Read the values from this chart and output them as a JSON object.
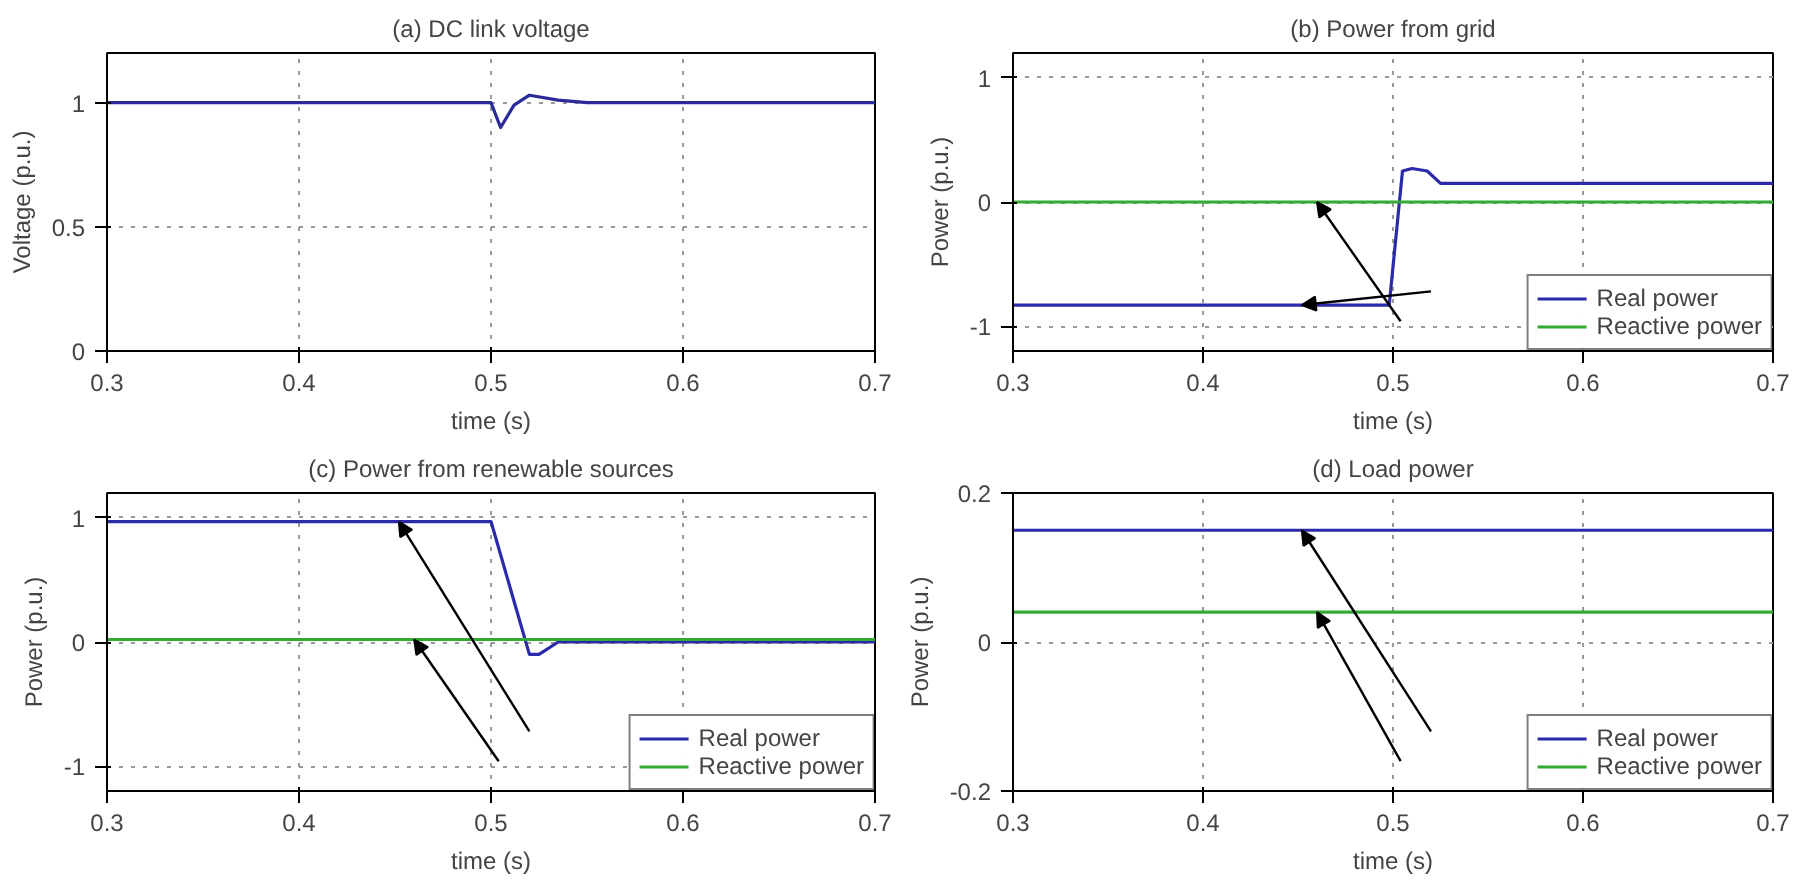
{
  "chart_data": [
    {
      "type": "line",
      "title": "(a) DC link voltage",
      "xlabel": "time (s)",
      "ylabel": "Voltage (p.u.)",
      "xlim": [
        0.3,
        0.7
      ],
      "xticks": [
        0.3,
        0.4,
        0.5,
        0.6,
        0.7
      ],
      "ylim": [
        0,
        1.2
      ],
      "yticks": [
        0,
        0.5,
        1
      ],
      "grid": true,
      "legend": false,
      "series": [
        {
          "color": "#2a2a9a",
          "x": [
            0.3,
            0.5,
            0.505,
            0.512,
            0.52,
            0.535,
            0.55,
            0.7
          ],
          "values": [
            1,
            1,
            0.9,
            0.99,
            1.03,
            1.01,
            1.0,
            1.0
          ]
        }
      ]
    },
    {
      "type": "line",
      "title": "(b) Power from grid",
      "xlabel": "time (s)",
      "ylabel": "Power (p.u.)",
      "xlim": [
        0.3,
        0.7
      ],
      "xticks": [
        0.3,
        0.4,
        0.5,
        0.6,
        0.7
      ],
      "ylim": [
        -1.2,
        1.2
      ],
      "yticks": [
        -1,
        0,
        1
      ],
      "grid": true,
      "legend": "bottom right",
      "series": [
        {
          "name": "Real power",
          "color": "#2a2aaa",
          "x": [
            0.3,
            0.498,
            0.505,
            0.51,
            0.518,
            0.525,
            0.7
          ],
          "values": [
            -0.83,
            -0.83,
            0.25,
            0.27,
            0.25,
            0.15,
            0.15
          ]
        },
        {
          "name": "Reactive power",
          "color": "#33aa33",
          "x": [
            0.3,
            0.7
          ],
          "values": [
            0,
            0
          ]
        }
      ]
    },
    {
      "type": "line",
      "title": "(c) Power from renewable sources",
      "xlabel": "time (s)",
      "ylabel": "Power (p.u.)",
      "xlim": [
        0.3,
        0.7
      ],
      "xticks": [
        0.3,
        0.4,
        0.5,
        0.6,
        0.7
      ],
      "ylim": [
        -1.2,
        1.2
      ],
      "yticks": [
        -1,
        0,
        1
      ],
      "grid": true,
      "legend": "bottom right",
      "series": [
        {
          "name": "Real power",
          "color": "#2a2aaa",
          "x": [
            0.3,
            0.5,
            0.52,
            0.525,
            0.535,
            0.7
          ],
          "values": [
            0.97,
            0.97,
            -0.1,
            -0.1,
            0,
            0
          ]
        },
        {
          "name": "Reactive power",
          "color": "#33aa33",
          "x": [
            0.3,
            0.7
          ],
          "values": [
            0.02,
            0.02
          ]
        }
      ]
    },
    {
      "type": "line",
      "title": "(d) Load power",
      "xlabel": "time (s)",
      "ylabel": "Power (p.u.)",
      "xlim": [
        0.3,
        0.7
      ],
      "xticks": [
        0.3,
        0.4,
        0.5,
        0.6,
        0.7
      ],
      "ylim": [
        -0.2,
        0.2
      ],
      "yticks": [
        -0.2,
        0,
        0.2
      ],
      "grid": true,
      "legend": "bottom right",
      "series": [
        {
          "name": "Real power",
          "color": "#2a2aaa",
          "x": [
            0.3,
            0.7
          ],
          "values": [
            0.15,
            0.15
          ]
        },
        {
          "name": "Reactive power",
          "color": "#33aa33",
          "x": [
            0.3,
            0.7
          ],
          "values": [
            0.04,
            0.04
          ]
        }
      ]
    }
  ]
}
